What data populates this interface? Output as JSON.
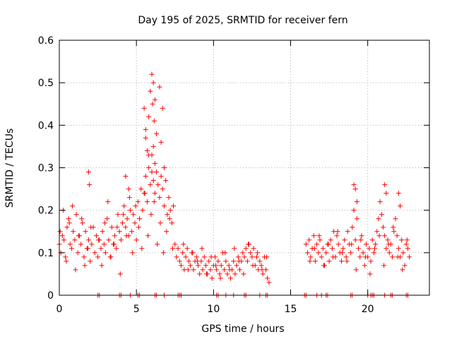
{
  "chart_data": {
    "type": "scatter",
    "title": "Day 195 of 2025, SRMTID for receiver fern",
    "xlabel": "GPS time / hours",
    "ylabel": "SRMTID / TECUs",
    "xlim": [
      0,
      24
    ],
    "ylim": [
      0,
      0.6
    ],
    "xticks": [
      0,
      5,
      10,
      15,
      20
    ],
    "xtick_labels": [
      "0",
      "5",
      "10",
      "15",
      "20"
    ],
    "yticks": [
      0,
      0.1,
      0.2,
      0.3,
      0.4,
      0.5,
      0.6
    ],
    "ytick_labels": [
      "0",
      "0.1",
      "0.2",
      "0.3",
      "0.4",
      "0.5",
      "0.6"
    ],
    "grid": true,
    "marker_color": "#ff0000",
    "marker": "plus",
    "series": [
      {
        "name": "SRMTID",
        "x": [
          0.0,
          0.1,
          0.2,
          0.3,
          0.4,
          0.5,
          0.6,
          0.7,
          0.8,
          0.9,
          1.0,
          1.1,
          1.2,
          1.3,
          1.4,
          1.5,
          1.6,
          1.7,
          1.8,
          1.9,
          2.0,
          2.1,
          2.2,
          2.3,
          2.4,
          2.5,
          2.6,
          2.7,
          2.8,
          2.9,
          3.0,
          3.1,
          3.2,
          3.3,
          3.4,
          3.5,
          3.6,
          3.7,
          3.8,
          3.9,
          4.0,
          4.1,
          4.2,
          4.3,
          4.4,
          4.5,
          4.6,
          4.7,
          4.8,
          4.9,
          5.0,
          5.1,
          5.2,
          5.3,
          5.4,
          5.5,
          5.6,
          5.7,
          5.8,
          5.9,
          6.0,
          6.1,
          6.2,
          6.3,
          6.4,
          6.5,
          6.6,
          6.7,
          6.8,
          6.9,
          7.0,
          7.1,
          7.2,
          7.3,
          7.4,
          7.5,
          7.6,
          7.7,
          7.8,
          7.9,
          8.0,
          8.1,
          8.2,
          8.3,
          8.4,
          8.5,
          8.6,
          8.7,
          8.8,
          8.9,
          9.0,
          9.1,
          9.2,
          9.3,
          9.4,
          9.5,
          9.6,
          9.7,
          9.8,
          9.9,
          10.0,
          10.1,
          10.2,
          10.3,
          10.4,
          10.5,
          10.6,
          10.7,
          10.8,
          10.9,
          11.0,
          11.1,
          11.2,
          11.3,
          11.4,
          11.5,
          11.6,
          11.7,
          11.8,
          11.9,
          12.0,
          12.1,
          12.2,
          12.3,
          12.4,
          12.5,
          12.6,
          12.7,
          12.8,
          12.9,
          13.0,
          13.1,
          13.2,
          13.3,
          13.4,
          13.5,
          13.6,
          16.0,
          16.1,
          16.2,
          16.3,
          16.4,
          16.5,
          16.6,
          16.7,
          16.8,
          16.9,
          17.0,
          17.1,
          17.2,
          17.3,
          17.4,
          17.5,
          17.6,
          17.7,
          17.8,
          17.9,
          18.0,
          18.1,
          18.2,
          18.3,
          18.4,
          18.5,
          18.6,
          18.7,
          18.8,
          18.9,
          19.0,
          19.1,
          19.2,
          19.3,
          19.4,
          19.5,
          19.6,
          19.7,
          19.8,
          19.9,
          20.0,
          20.1,
          20.2,
          20.3,
          20.4,
          20.5,
          20.6,
          20.7,
          20.8,
          20.9,
          21.0,
          21.1,
          21.2,
          21.3,
          21.4,
          21.5,
          21.6,
          21.7,
          21.8,
          21.9,
          22.0,
          22.1,
          22.2,
          22.3,
          22.4,
          22.5,
          22.6,
          22.7,
          0.05,
          0.25,
          0.45,
          0.65,
          0.85,
          1.05,
          1.25,
          1.45,
          1.65,
          1.85,
          2.05,
          2.55,
          2.75,
          2.95,
          3.15,
          3.35,
          3.55,
          3.75,
          3.95,
          4.15,
          4.35,
          4.55,
          4.75,
          4.95,
          5.15,
          5.35,
          5.55,
          5.75,
          5.95,
          6.15,
          6.35,
          6.55,
          6.75,
          6.95,
          7.15,
          7.35,
          5.5,
          5.6,
          5.7,
          5.8,
          5.9,
          6.0,
          6.05,
          6.1,
          6.15,
          6.2,
          6.3,
          6.5,
          6.6,
          6.7,
          6.8,
          5.6,
          5.8,
          6.0,
          6.1,
          6.2,
          1.9,
          1.95,
          4.3,
          4.5,
          19.1,
          19.2,
          19.3,
          21.1,
          21.2,
          22.0,
          22.1,
          8.05,
          8.35,
          8.65,
          8.95,
          9.25,
          9.55,
          9.85,
          10.15,
          10.45,
          10.75,
          11.05,
          11.35,
          11.65,
          11.95,
          12.25,
          12.55,
          12.85,
          13.15,
          13.45,
          16.25,
          16.55,
          16.85,
          17.15,
          17.45,
          17.75,
          18.05,
          18.35,
          18.65,
          18.95,
          19.25,
          19.55,
          19.85,
          20.15,
          20.45,
          20.75,
          21.05,
          21.35,
          21.65,
          21.95,
          22.25,
          22.55
        ],
        "y": [
          0.12,
          0.1,
          0.14,
          0.13,
          0.09,
          0.16,
          0.18,
          0.12,
          0.11,
          0.15,
          0.13,
          0.19,
          0.1,
          0.14,
          0.12,
          0.17,
          0.09,
          0.15,
          0.11,
          0.13,
          0.08,
          0.12,
          0.16,
          0.1,
          0.14,
          0.09,
          0.13,
          0.11,
          0.15,
          0.12,
          0.1,
          0.18,
          0.13,
          0.09,
          0.16,
          0.12,
          0.14,
          0.11,
          0.19,
          0.15,
          0.13,
          0.17,
          0.21,
          0.16,
          0.18,
          0.14,
          0.2,
          0.15,
          0.19,
          0.17,
          0.13,
          0.22,
          0.18,
          0.25,
          0.2,
          0.24,
          0.28,
          0.22,
          0.3,
          0.26,
          0.33,
          0.27,
          0.24,
          0.29,
          0.26,
          0.23,
          0.28,
          0.25,
          0.21,
          0.27,
          0.19,
          0.23,
          0.2,
          0.17,
          0.21,
          0.12,
          0.09,
          0.11,
          0.08,
          0.07,
          0.1,
          0.06,
          0.09,
          0.11,
          0.08,
          0.07,
          0.1,
          0.06,
          0.08,
          0.09,
          0.07,
          0.05,
          0.08,
          0.06,
          0.09,
          0.07,
          0.05,
          0.08,
          0.06,
          0.04,
          0.07,
          0.09,
          0.06,
          0.08,
          0.05,
          0.07,
          0.1,
          0.06,
          0.08,
          0.05,
          0.07,
          0.04,
          0.06,
          0.08,
          0.05,
          0.07,
          0.09,
          0.06,
          0.08,
          0.1,
          0.09,
          0.11,
          0.08,
          0.12,
          0.1,
          0.09,
          0.11,
          0.07,
          0.09,
          0.06,
          0.08,
          0.07,
          0.05,
          0.09,
          0.06,
          0.04,
          0.03,
          0.12,
          0.1,
          0.13,
          0.09,
          0.11,
          0.14,
          0.08,
          0.12,
          0.1,
          0.13,
          0.09,
          0.11,
          0.07,
          0.1,
          0.12,
          0.08,
          0.13,
          0.11,
          0.15,
          0.09,
          0.14,
          0.12,
          0.1,
          0.08,
          0.11,
          0.13,
          0.09,
          0.15,
          0.12,
          0.1,
          0.16,
          0.2,
          0.13,
          0.18,
          0.11,
          0.09,
          0.14,
          0.1,
          0.07,
          0.12,
          0.09,
          0.11,
          0.08,
          0.13,
          0.1,
          0.12,
          0.15,
          0.18,
          0.22,
          0.19,
          0.16,
          0.14,
          0.11,
          0.13,
          0.1,
          0.12,
          0.09,
          0.15,
          0.18,
          0.14,
          0.11,
          0.09,
          0.13,
          0.1,
          0.07,
          0.12,
          0.11,
          0.09,
          0.15,
          0.2,
          0.08,
          0.17,
          0.21,
          0.06,
          0.14,
          0.18,
          0.07,
          0.11,
          0.16,
          0.13,
          0.07,
          0.17,
          0.22,
          0.09,
          0.12,
          0.16,
          0.05,
          0.19,
          0.14,
          0.23,
          0.1,
          0.21,
          0.16,
          0.11,
          0.24,
          0.14,
          0.19,
          0.22,
          0.12,
          0.17,
          0.1,
          0.15,
          0.18,
          0.11,
          0.44,
          0.39,
          0.34,
          0.42,
          0.48,
          0.52,
          0.45,
          0.5,
          0.41,
          0.46,
          0.38,
          0.49,
          0.36,
          0.44,
          0.3,
          0.37,
          0.33,
          0.29,
          0.35,
          0.31,
          0.29,
          0.26,
          0.28,
          0.25,
          0.26,
          0.25,
          0.22,
          0.26,
          0.24,
          0.24,
          0.21,
          0.12,
          0.06,
          0.1,
          0.08,
          0.11,
          0.05,
          0.09,
          0.07,
          0.04,
          0.1,
          0.06,
          0.11,
          0.08,
          0.05,
          0.12,
          0.07,
          0.1,
          0.06,
          0.09,
          0.08,
          0.11,
          0.14,
          0.07,
          0.12,
          0.09,
          0.15,
          0.1,
          0.08,
          0.12,
          0.06,
          0.13,
          0.09,
          0.05,
          0.11,
          0.14,
          0.07,
          0.12,
          0.16,
          0.09,
          0.06,
          0.13
        ]
      },
      {
        "name": "baseline",
        "x": [
          2.5,
          2.6,
          3.9,
          4.0,
          4.6,
          5.1,
          5.2,
          6.2,
          6.3,
          6.8,
          7.7,
          7.8,
          7.9,
          10.2,
          10.3,
          10.8,
          11.3,
          12.0,
          12.1,
          13.0,
          13.4,
          13.5,
          15.9,
          16.0,
          16.7,
          17.0,
          17.3,
          17.4,
          18.9,
          19.0,
          20.0,
          20.2,
          20.3,
          20.4,
          21.1,
          21.5,
          21.6,
          22.5,
          22.6
        ],
        "y": [
          0,
          0,
          0,
          0,
          0,
          0,
          0,
          0,
          0,
          0,
          0,
          0,
          0,
          0,
          0,
          0,
          0,
          0,
          0,
          0,
          0,
          0,
          0,
          0,
          0,
          0,
          0,
          0,
          0,
          0,
          0,
          0,
          0,
          0,
          0,
          0,
          0,
          0,
          0
        ]
      }
    ]
  }
}
